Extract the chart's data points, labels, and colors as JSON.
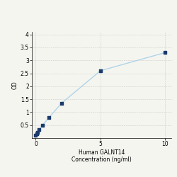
{
  "x": [
    0.0,
    0.0625,
    0.125,
    0.25,
    0.5,
    1.0,
    2.0,
    5.0,
    10.0
  ],
  "y": [
    0.12,
    0.17,
    0.22,
    0.32,
    0.48,
    0.78,
    1.35,
    2.6,
    3.3
  ],
  "xlabel_line1": "Human GALNT14",
  "xlabel_line2": "Concentration (ng/ml)",
  "ylabel": "OD",
  "xlim": [
    -0.3,
    10.5
  ],
  "ylim": [
    0,
    4.1
  ],
  "ytick_vals": [
    0.5,
    1.0,
    1.5,
    2.0,
    2.5,
    3.0,
    3.5,
    4.0
  ],
  "ytick_labels": [
    "0.5",
    "1",
    "1.5",
    "2",
    "2.5",
    "3",
    "3.5",
    "4"
  ],
  "xtick_vals": [
    0,
    5,
    10
  ],
  "xtick_labels": [
    "0",
    "5",
    "10"
  ],
  "line_color": "#b0d4e8",
  "marker_color": "#1a3a6b",
  "marker_size": 12,
  "line_width": 1.0,
  "grid_color": "#cccccc",
  "background_color": "#f5f5f0",
  "tick_label_fontsize": 5.5,
  "axis_label_fontsize": 5.5
}
